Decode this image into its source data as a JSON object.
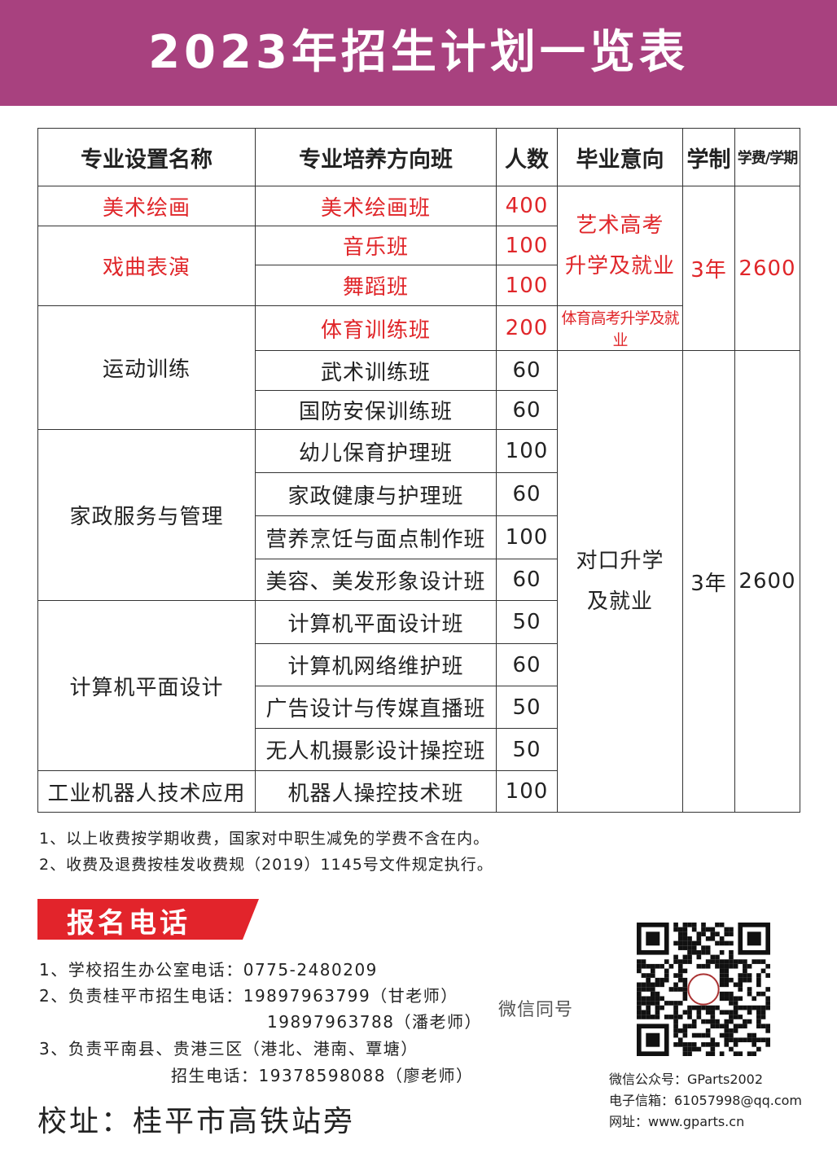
{
  "header": {
    "title": "2023年招生计划一览表"
  },
  "table": {
    "headers": [
      "专业设置名称",
      "专业培养方向班",
      "人数",
      "毕业意向",
      "学制",
      "学费/学期"
    ],
    "groups": [
      {
        "name": "美术绘画",
        "classes": [
          {
            "name": "美术绘画班",
            "count": 400
          }
        ]
      },
      {
        "name": "戏曲表演",
        "classes": [
          {
            "name": "音乐班",
            "count": 100
          },
          {
            "name": "舞蹈班",
            "count": 100
          }
        ]
      },
      {
        "name": "运动训练",
        "classes": [
          {
            "name": "体育训练班",
            "count": 200
          },
          {
            "name": "武术训练班",
            "count": 60
          },
          {
            "name": "国防安保训练班",
            "count": 60
          }
        ]
      },
      {
        "name": "家政服务与管理",
        "classes": [
          {
            "name": "幼儿保育护理班",
            "count": 100
          },
          {
            "name": "家政健康与护理班",
            "count": 60
          },
          {
            "name": "营养烹饪与面点制作班",
            "count": 100
          },
          {
            "name": "美容、美发形象设计班",
            "count": 60
          }
        ]
      },
      {
        "name": "计算机平面设计",
        "classes": [
          {
            "name": "计算机平面设计班",
            "count": 50
          },
          {
            "name": "计算机网络维护班",
            "count": 60
          },
          {
            "name": "广告设计与传媒直播班",
            "count": 50
          },
          {
            "name": "无人机摄影设计操控班",
            "count": 50
          }
        ]
      },
      {
        "name": "工业机器人技术应用",
        "classes": [
          {
            "name": "机器人操控技术班",
            "count": 100
          }
        ]
      }
    ],
    "tracks": [
      {
        "outcome": [
          "艺术高考",
          "升学及就业"
        ]
      },
      {
        "outcome": [
          "体育高考升学及就业"
        ]
      },
      {
        "outcome": [
          "对口升学",
          "及就业"
        ]
      }
    ],
    "terms": [
      {
        "duration": "3年",
        "fee": 2600
      },
      {
        "duration": "3年",
        "fee": 2600
      }
    ]
  },
  "notes": [
    "1、以上收费按学期收费，国家对中职生减免的学费不含在内。",
    "2、收费及退费按桂发收费规（2019）1145号文件规定执行。"
  ],
  "enroll": {
    "badge": "报名电话",
    "contacts": [
      "1、学校招生办公室电话：0775-2480209",
      "2、负责桂平市招生电话：19897963799（甘老师）",
      "19897963788（潘老师）",
      "3、负责平南县、贵港三区（港北、港南、覃塘）",
      "招生电话：19378598088（廖老师）"
    ],
    "wechat_same": "微信同号"
  },
  "address": "校址：桂平市高铁站旁",
  "contact_info": [
    "微信公众号：GParts2002",
    "电子信箱：61057998@qq.com",
    "网址：www.gparts.cn"
  ]
}
